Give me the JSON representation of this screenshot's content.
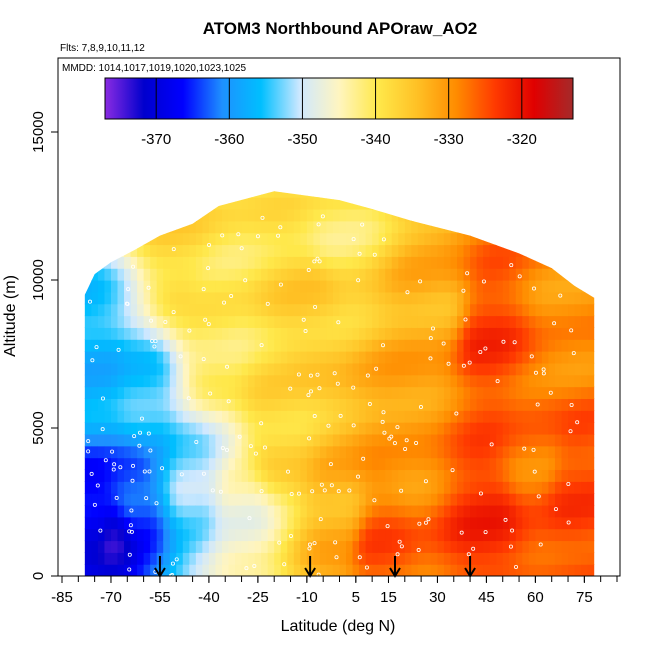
{
  "chart_data": {
    "type": "heatmap",
    "title": "ATOM3 Northbound APOraw_AO2",
    "subtitle_flights": "Flts: 7,8,9,10,11,12",
    "subtitle_dates": "MMDD: 1014,1017,1019,1020,1023,1025",
    "xlabel": "Latitude (deg N)",
    "ylabel": "Altitude (m)",
    "xlim": [
      -85,
      85
    ],
    "ylim": [
      0,
      17500
    ],
    "x_ticks": [
      -85,
      -70,
      -55,
      -40,
      -25,
      -10,
      5,
      15,
      30,
      45,
      60,
      75
    ],
    "y_ticks": [
      0,
      5000,
      10000,
      15000
    ],
    "colorbar": {
      "range": [
        -377,
        -313
      ],
      "ticks": [
        -370,
        -360,
        -350,
        -340,
        -330,
        -320
      ],
      "colors": [
        "#8a2be2",
        "#0000cd",
        "#0000ff",
        "#1e90ff",
        "#00bfff",
        "#cfe8ff",
        "#fff5c0",
        "#ffe84a",
        "#ffc125",
        "#ff8c00",
        "#ff3a00",
        "#e00000",
        "#a52a2a"
      ]
    },
    "arrows_lat": [
      -55,
      -9,
      17,
      40
    ],
    "profile": [
      {
        "lat": -78,
        "top": 9500
      },
      {
        "lat": -75,
        "top": 10200
      },
      {
        "lat": -70,
        "top": 10600
      },
      {
        "lat": -63,
        "top": 11000
      },
      {
        "lat": -55,
        "top": 11500
      },
      {
        "lat": -45,
        "top": 11900
      },
      {
        "lat": -37,
        "top": 12500
      },
      {
        "lat": -20,
        "top": 13000
      },
      {
        "lat": 0,
        "top": 12700
      },
      {
        "lat": 10,
        "top": 12400
      },
      {
        "lat": 22,
        "top": 12000
      },
      {
        "lat": 40,
        "top": 11500
      },
      {
        "lat": 55,
        "top": 10900
      },
      {
        "lat": 65,
        "top": 10400
      },
      {
        "lat": 72,
        "top": 9800
      },
      {
        "lat": 78,
        "top": 9400
      }
    ],
    "apo_field_description_points": [
      {
        "lat": -75,
        "alt": 1500,
        "value": -368
      },
      {
        "lat": -70,
        "alt": 1000,
        "value": -372
      },
      {
        "lat": -62,
        "alt": 2500,
        "value": -364
      },
      {
        "lat": -75,
        "alt": 7000,
        "value": -357
      },
      {
        "lat": -60,
        "alt": 6000,
        "value": -355
      },
      {
        "lat": -45,
        "alt": 3000,
        "value": -352
      },
      {
        "lat": -40,
        "alt": 8000,
        "value": -340
      },
      {
        "lat": -30,
        "alt": 2000,
        "value": -346
      },
      {
        "lat": -20,
        "alt": 5000,
        "value": -337
      },
      {
        "lat": -10,
        "alt": 9000,
        "value": -336
      },
      {
        "lat": 0,
        "alt": 2000,
        "value": -333
      },
      {
        "lat": 12,
        "alt": 1000,
        "value": -325
      },
      {
        "lat": 20,
        "alt": 5000,
        "value": -331
      },
      {
        "lat": 30,
        "alt": 9000,
        "value": -333
      },
      {
        "lat": 45,
        "alt": 2000,
        "value": -322
      },
      {
        "lat": 45,
        "alt": 8000,
        "value": -323
      },
      {
        "lat": 60,
        "alt": 4000,
        "value": -328
      },
      {
        "lat": 72,
        "alt": 3000,
        "value": -324
      },
      {
        "lat": 70,
        "alt": 9000,
        "value": -330
      },
      {
        "lat": 0,
        "alt": 12000,
        "value": -341
      },
      {
        "lat": -50,
        "alt": 11000,
        "value": -337
      }
    ]
  }
}
